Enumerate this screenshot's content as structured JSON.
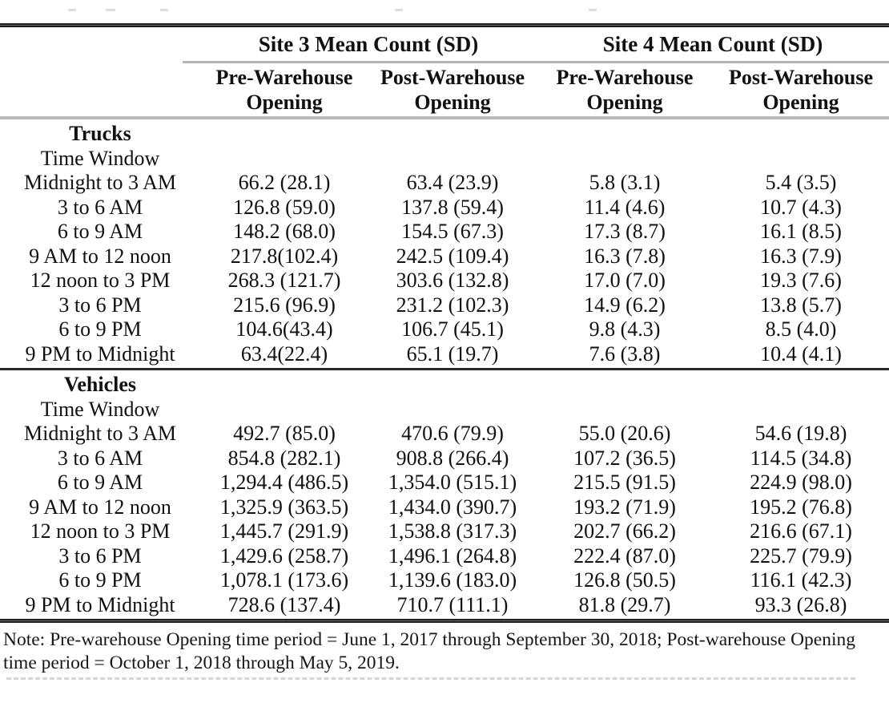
{
  "table": {
    "col_groups": [
      {
        "label": "Site 3 Mean Count (SD)"
      },
      {
        "label": "Site 4 Mean Count (SD)"
      }
    ],
    "sub_headers": [
      "Pre-Warehouse Opening",
      "Post-Warehouse Opening",
      "Pre-Warehouse Opening",
      "Post-Warehouse Opening"
    ],
    "sections": [
      {
        "title": "Trucks",
        "subtitle": "Time Window",
        "rows": [
          {
            "label": "Midnight to 3 AM",
            "values": [
              "66.2 (28.1)",
              "63.4 (23.9)",
              "5.8 (3.1)",
              "5.4 (3.5)"
            ]
          },
          {
            "label": "3 to 6 AM",
            "values": [
              "126.8 (59.0)",
              "137.8 (59.4)",
              "11.4 (4.6)",
              "10.7 (4.3)"
            ]
          },
          {
            "label": "6 to 9 AM",
            "values": [
              "148.2 (68.0)",
              "154.5 (67.3)",
              "17.3 (8.7)",
              "16.1 (8.5)"
            ]
          },
          {
            "label": "9 AM to 12 noon",
            "values": [
              "217.8(102.4)",
              "242.5 (109.4)",
              "16.3 (7.8)",
              "16.3 (7.9)"
            ]
          },
          {
            "label": "12 noon to 3 PM",
            "values": [
              "268.3 (121.7)",
              "303.6 (132.8)",
              "17.0 (7.0)",
              "19.3 (7.6)"
            ]
          },
          {
            "label": "3 to 6 PM",
            "values": [
              "215.6 (96.9)",
              "231.2 (102.3)",
              "14.9 (6.2)",
              "13.8 (5.7)"
            ]
          },
          {
            "label": "6 to 9 PM",
            "values": [
              "104.6(43.4)",
              "106.7 (45.1)",
              "9.8 (4.3)",
              "8.5 (4.0)"
            ]
          },
          {
            "label": "9 PM to Midnight",
            "values": [
              "63.4(22.4)",
              "65.1 (19.7)",
              "7.6 (3.8)",
              "10.4 (4.1)"
            ]
          }
        ]
      },
      {
        "title": "Vehicles",
        "subtitle": "Time Window",
        "rows": [
          {
            "label": "Midnight to 3 AM",
            "values": [
              "492.7 (85.0)",
              "470.6 (79.9)",
              "55.0 (20.6)",
              "54.6 (19.8)"
            ]
          },
          {
            "label": "3 to 6 AM",
            "values": [
              "854.8 (282.1)",
              "908.8 (266.4)",
              "107.2 (36.5)",
              "114.5 (34.8)"
            ]
          },
          {
            "label": "6 to 9 AM",
            "values": [
              "1,294.4 (486.5)",
              "1,354.0 (515.1)",
              "215.5 (91.5)",
              "224.9 (98.0)"
            ]
          },
          {
            "label": "9 AM to 12 noon",
            "values": [
              "1,325.9 (363.5)",
              "1,434.0 (390.7)",
              "193.2 (71.9)",
              "195.2 (76.8)"
            ]
          },
          {
            "label": "12 noon to 3 PM",
            "values": [
              "1,445.7 (291.9)",
              "1,538.8 (317.3)",
              "202.7 (66.2)",
              "216.6 (67.1)"
            ]
          },
          {
            "label": "3 to 6 PM",
            "values": [
              "1,429.6 (258.7)",
              "1,496.1 (264.8)",
              "222.4 (87.0)",
              "225.7 (79.9)"
            ]
          },
          {
            "label": "6 to 9 PM",
            "values": [
              "1,078.1 (173.6)",
              "1,139.6 (183.0)",
              "126.8 (50.5)",
              "116.1 (42.3)"
            ]
          },
          {
            "label": "9 PM to Midnight",
            "values": [
              "728.6 (137.4)",
              "710.7 (111.1)",
              "81.8 (29.7)",
              "93.3 (26.8)"
            ]
          }
        ]
      }
    ],
    "note": "Note: Pre-warehouse Opening time period = June 1, 2017 through September 30, 2018; Post-warehouse Opening time period = October 1, 2018 through May 5, 2019."
  }
}
